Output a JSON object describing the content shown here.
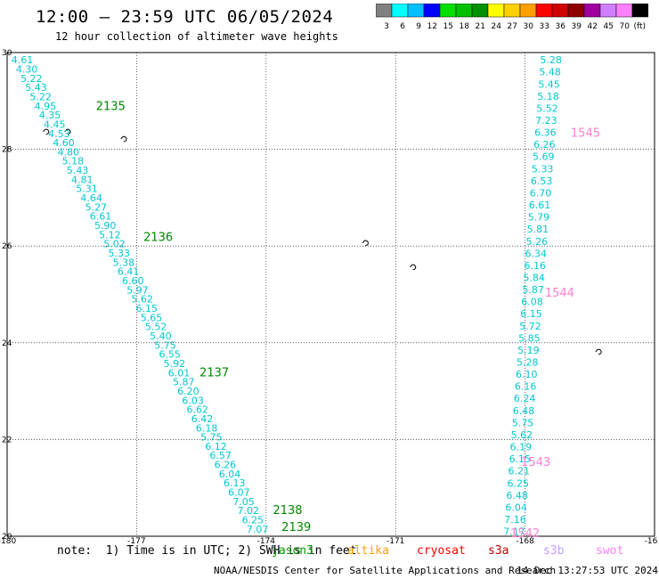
{
  "header": {
    "title": "12:00 – 23:59 UTC 06/05/2024",
    "subtitle": "12 hour collection of altimeter wave heights"
  },
  "scale": {
    "labels": [
      "3",
      "6",
      "9",
      "12",
      "15",
      "18",
      "21",
      "24",
      "27",
      "30",
      "33",
      "36",
      "39",
      "42",
      "45",
      "70",
      "(ft)"
    ],
    "colors": [
      "#808080",
      "#00ffff",
      "#00bfff",
      "#0000ff",
      "#00e000",
      "#00c000",
      "#009000",
      "#ffff00",
      "#ffd000",
      "#ffa000",
      "#ff0000",
      "#d00000",
      "#900000",
      "#a000a0",
      "#d080ff",
      "#ff80ff",
      "#000000"
    ]
  },
  "map": {
    "lon_range": [
      -180,
      -165
    ],
    "lat_range": [
      20,
      30
    ],
    "lon_ticks": [
      "-180",
      "-177",
      "-174",
      "-171",
      "-168",
      "-16"
    ],
    "lat_ticks": [
      "30",
      "28",
      "26",
      "24",
      "22",
      "20"
    ],
    "tracks": [
      {
        "satellite": "jason3",
        "color": "#00c8d0",
        "lon_start": -179.65,
        "lat_start": 29.85,
        "lon_end": -174.2,
        "lat_end": 20.15,
        "values": [
          "4.61",
          "4.30",
          "5.22",
          "5.43",
          "5.22",
          "4.95",
          "4.35",
          "4.45",
          "4.53",
          "4.60",
          "4.80",
          "5.18",
          "5.43",
          "4.81",
          "5.31",
          "4.64",
          "5.27",
          "6.61",
          "5.90",
          "5.12",
          "5.02",
          "5.33",
          "5.38",
          "6.41",
          "6.60",
          "5.97",
          "5.62",
          "6.15",
          "5.65",
          "5.52",
          "5.40",
          "5.75",
          "6.55",
          "5.92",
          "6.01",
          "5.87",
          "6.20",
          "6.03",
          "6.62",
          "6.42",
          "6.18",
          "5.75",
          "6.12",
          "6.57",
          "6.26",
          "6.04",
          "6.13",
          "6.07",
          "7.05",
          "7.02",
          "6.25",
          "7.07"
        ],
        "passes": [
          {
            "label": "2135",
            "color": "#008800",
            "lon": -177.6,
            "lat": 28.9
          },
          {
            "label": "2136",
            "color": "#008800",
            "lon": -176.5,
            "lat": 26.2
          },
          {
            "label": "2137",
            "color": "#008800",
            "lon": -175.2,
            "lat": 23.4
          },
          {
            "label": "2138",
            "color": "#008800",
            "lon": -173.5,
            "lat": 20.55
          },
          {
            "label": "2139",
            "color": "#008800",
            "lon": -173.3,
            "lat": 20.2
          }
        ]
      },
      {
        "satellite": "s3b",
        "color": "#00c8d0",
        "lon_start": -167.4,
        "lat_start": 29.85,
        "lon_end": -168.25,
        "lat_end": 20.1,
        "values": [
          "5.28",
          "5.48",
          "5.45",
          "5.18",
          "5.52",
          "7.23",
          "6.36",
          "6.26",
          "5.69",
          "5.33",
          "6.53",
          "6.70",
          "6.61",
          "5.79",
          "5.81",
          "5.26",
          "6.34",
          "6.16",
          "5.84",
          "5.87",
          "6.08",
          "6.15",
          "5.72",
          "5.85",
          "5.19",
          "5.28",
          "6.10",
          "6.16",
          "6.24",
          "6.48",
          "5.75",
          "5.62",
          "6.19",
          "6.15",
          "6.21",
          "6.25",
          "6.48",
          "6.04",
          "7.16",
          "7.17"
        ],
        "passes": [
          {
            "label": "1545",
            "color": "#ff80d0",
            "lon": -166.6,
            "lat": 28.35
          },
          {
            "label": "1544",
            "color": "#ff80d0",
            "lon": -167.2,
            "lat": 25.05
          },
          {
            "label": "1543",
            "color": "#ff80d0",
            "lon": -167.75,
            "lat": 21.55
          },
          {
            "label": "1542",
            "color": "#ff80d0",
            "lon": -168.0,
            "lat": 20.07
          }
        ]
      }
    ],
    "islands": [
      {
        "lon": -179.1,
        "lat": 28.4
      },
      {
        "lon": -178.6,
        "lat": 28.4
      },
      {
        "lon": -177.3,
        "lat": 28.25
      },
      {
        "lon": -171.7,
        "lat": 26.1
      },
      {
        "lon": -170.6,
        "lat": 25.6
      },
      {
        "lon": -166.3,
        "lat": 23.85
      }
    ]
  },
  "footer": {
    "note": "note:  1) Time is in UTC; 2) SWH is in feet",
    "satellites": [
      {
        "name": "jason3",
        "color": "#00a000"
      },
      {
        "name": "altika",
        "color": "#ffa000"
      },
      {
        "name": "cryosat",
        "color": "#ff0000"
      },
      {
        "name": "s3a",
        "color": "#c00000"
      },
      {
        "name": "s3b",
        "color": "#c0a0ff"
      },
      {
        "name": "swot",
        "color": "#ff80ff"
      }
    ],
    "credit": "NOAA/NESDIS Center for Satellite Applications and Research",
    "stamp": "14 Dec 13:27:53 UTC 2024"
  }
}
